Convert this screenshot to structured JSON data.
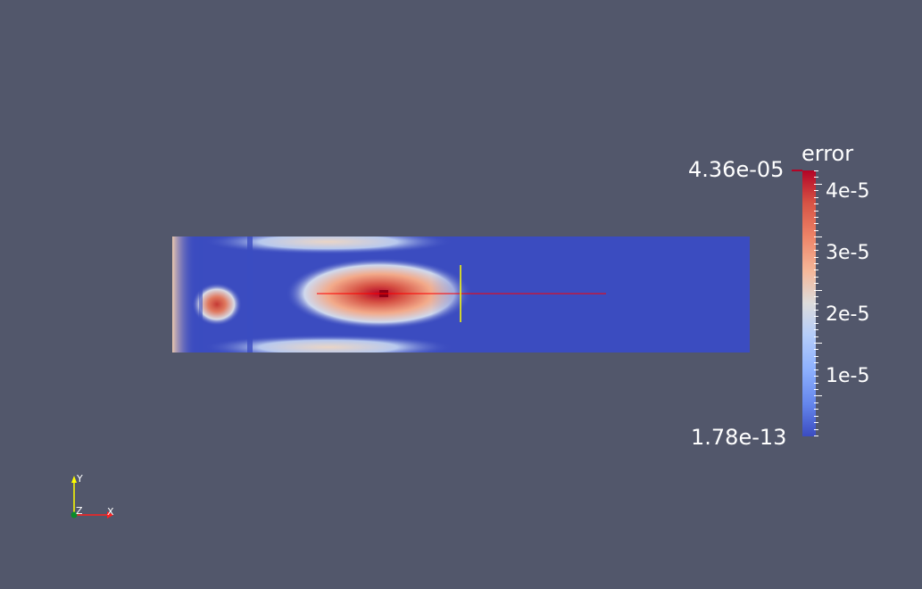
{
  "colorbar": {
    "title": "error",
    "max_label": "4.36e-05",
    "min_label": "1.78e-13",
    "tick_labels": [
      "4e-5",
      "3e-5",
      "2e-5",
      "1e-5"
    ],
    "colormap": "cool-to-warm",
    "colors": {
      "low": "#3b4cc0",
      "mid": "#dddcdc",
      "high": "#b40426"
    }
  },
  "axes_triad": {
    "x_label": "X",
    "y_label": "Y",
    "z_label": "Z"
  },
  "scene": {
    "background_color": "#52576b",
    "probe_line_color": "#ff0000",
    "cursor_line_color": "#ffff00"
  }
}
